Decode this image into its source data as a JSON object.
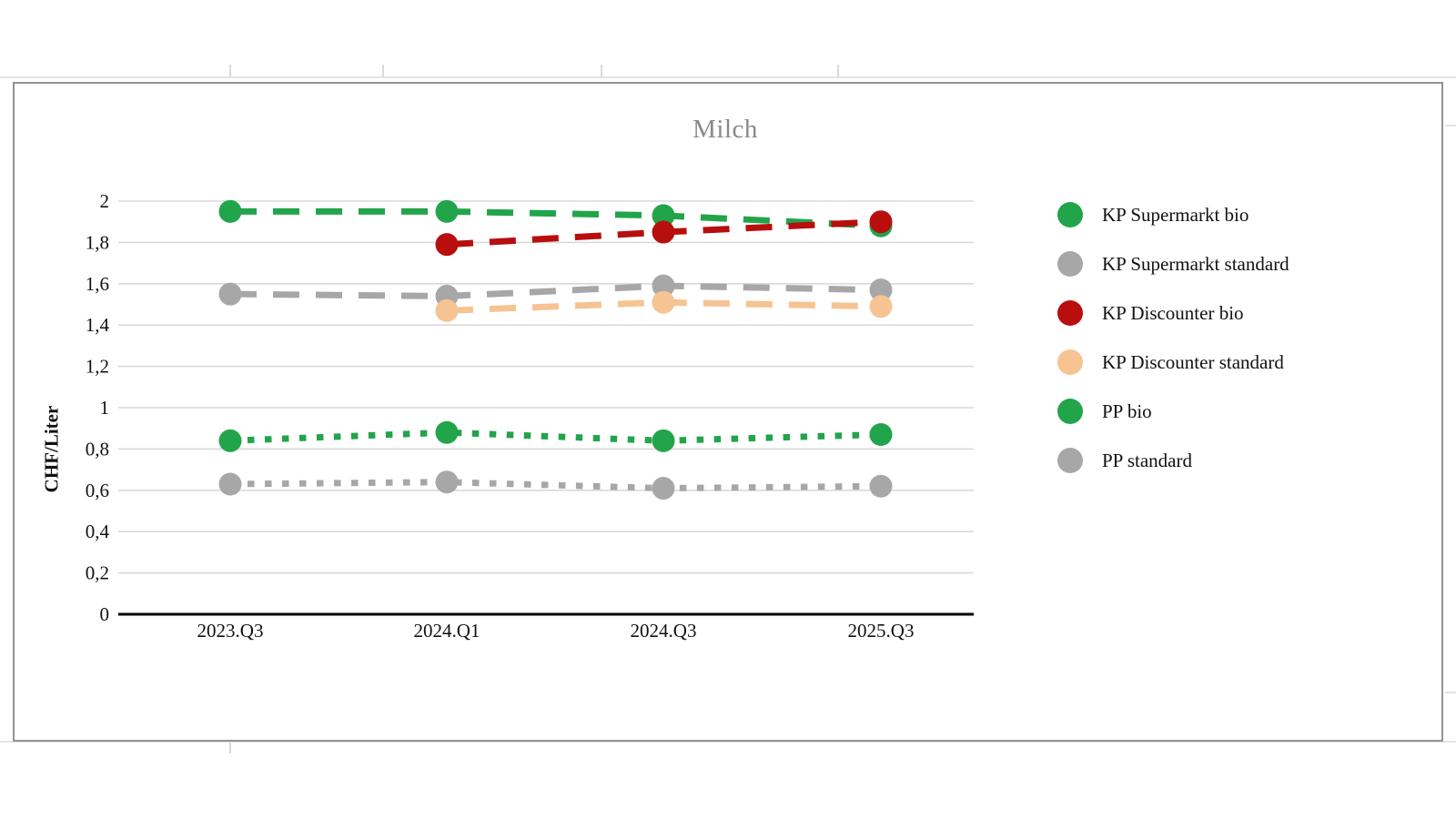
{
  "sheet": {
    "background_color": "#ffffff",
    "gridline_color": "#e3e3e3"
  },
  "chart": {
    "frame_color": "#949494",
    "title_color": "#898989",
    "grid_color": "#d9d9d9",
    "axis_color": "#000000"
  },
  "chart_data": {
    "type": "line",
    "title": "Milch",
    "ylabel": "CHF/Liter",
    "xlabel": "",
    "categories": [
      "2023.Q3",
      "2024.Q1",
      "2024.Q3",
      "2025.Q3"
    ],
    "ylim": [
      0,
      2
    ],
    "grid": true,
    "legend_position": "right",
    "decimal_separator": ",",
    "y_ticks": [
      {
        "value": 0,
        "label": "0"
      },
      {
        "value": 0.2,
        "label": "0,2"
      },
      {
        "value": 0.4,
        "label": "0,4"
      },
      {
        "value": 0.6,
        "label": "0,6"
      },
      {
        "value": 0.8,
        "label": "0,8"
      },
      {
        "value": 1,
        "label": "1"
      },
      {
        "value": 1.2,
        "label": "1,2"
      },
      {
        "value": 1.4,
        "label": "1,4"
      },
      {
        "value": 1.6,
        "label": "1,6"
      },
      {
        "value": 1.8,
        "label": "1,8"
      },
      {
        "value": 2,
        "label": "2"
      }
    ],
    "series": [
      {
        "name": "KP Supermarkt bio",
        "color": "#22a44b",
        "line_style": "dashed",
        "values": [
          1.95,
          1.95,
          1.93,
          1.88
        ]
      },
      {
        "name": "KP Supermarkt standard",
        "color": "#a7a7a7",
        "line_style": "dashed",
        "values": [
          1.55,
          1.54,
          1.59,
          1.57
        ]
      },
      {
        "name": "KP Discounter bio",
        "color": "#b80e0e",
        "line_style": "dashed",
        "values": [
          null,
          1.79,
          1.85,
          1.9
        ]
      },
      {
        "name": "KP Discounter standard",
        "color": "#f6c392",
        "line_style": "dashed",
        "values": [
          null,
          1.47,
          1.51,
          1.49
        ]
      },
      {
        "name": "PP bio",
        "color": "#22a44b",
        "line_style": "dotted",
        "values": [
          0.84,
          0.88,
          0.84,
          0.87
        ]
      },
      {
        "name": "PP standard",
        "color": "#a7a7a7",
        "line_style": "dotted",
        "values": [
          0.63,
          0.64,
          0.61,
          0.62
        ]
      }
    ]
  }
}
